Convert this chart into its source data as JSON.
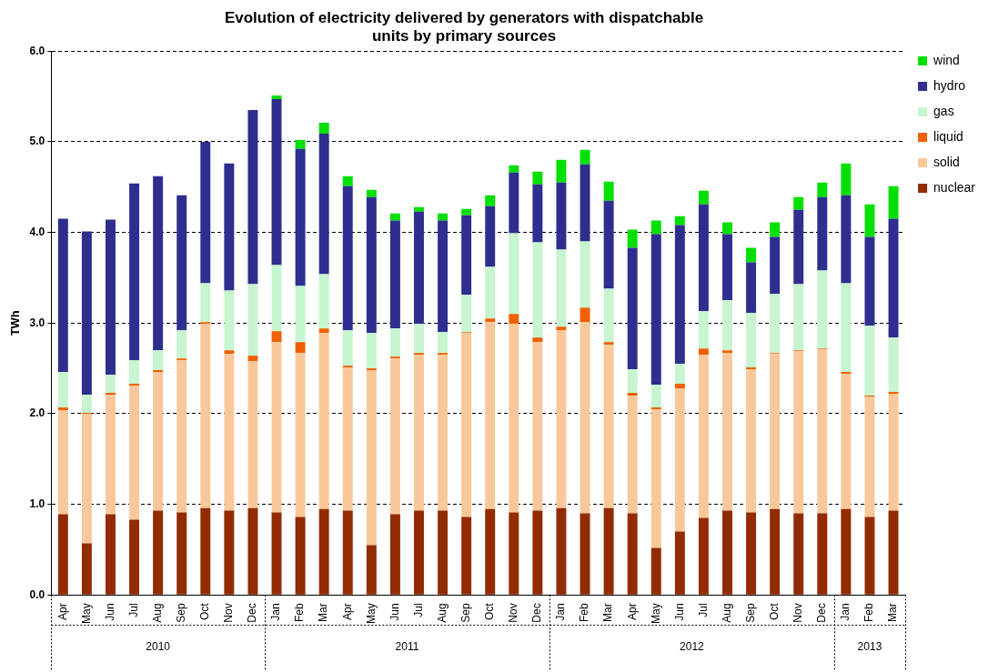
{
  "chart_data": {
    "type": "bar",
    "stacked": true,
    "title": "Evolution of electricity delivered by generators with dispatchable units by primary sources",
    "ylabel": "TWh",
    "categories": [
      "Apr",
      "May",
      "Jun",
      "Jul",
      "Aug",
      "Sep",
      "Oct",
      "Nov",
      "Dec",
      "Jan",
      "Feb",
      "Mar",
      "Apr",
      "May",
      "Jun",
      "Jul",
      "Aug",
      "Sep",
      "Oct",
      "Nov",
      "Dec",
      "Jan",
      "Feb",
      "Mar",
      "Apr",
      "May",
      "Jun",
      "Jul",
      "Aug",
      "Sep",
      "Oct",
      "Nov",
      "Dec",
      "Jan",
      "Feb",
      "Mar"
    ],
    "series": [
      {
        "name": "nuclear",
        "color": "#922b00",
        "values": [
          0.89,
          0.57,
          0.89,
          0.83,
          0.93,
          0.91,
          0.96,
          0.93,
          0.96,
          0.91,
          0.86,
          0.95,
          0.93,
          0.55,
          0.89,
          0.93,
          0.93,
          0.86,
          0.95,
          0.91,
          0.93,
          0.96,
          0.9,
          0.96,
          0.9,
          0.52,
          0.7,
          0.85,
          0.93,
          0.91,
          0.95,
          0.9,
          0.9,
          0.95,
          0.86,
          0.93
        ]
      },
      {
        "name": "solid",
        "color": "#f9c89a",
        "values": [
          1.15,
          1.43,
          1.32,
          1.48,
          1.53,
          1.68,
          2.03,
          1.73,
          1.62,
          1.88,
          1.81,
          1.94,
          1.58,
          1.93,
          1.72,
          1.72,
          1.72,
          2.03,
          2.06,
          2.08,
          1.86,
          1.96,
          2.11,
          1.8,
          1.3,
          1.53,
          1.58,
          1.8,
          1.74,
          1.58,
          1.71,
          1.79,
          1.81,
          1.49,
          1.33,
          1.29
        ]
      },
      {
        "name": "liquid",
        "color": "#f06000",
        "values": [
          0.03,
          0.01,
          0.02,
          0.02,
          0.02,
          0.02,
          0.02,
          0.04,
          0.06,
          0.12,
          0.12,
          0.05,
          0.02,
          0.02,
          0.02,
          0.02,
          0.02,
          0.01,
          0.04,
          0.11,
          0.05,
          0.04,
          0.16,
          0.03,
          0.03,
          0.02,
          0.05,
          0.07,
          0.03,
          0.02,
          0.01,
          0.01,
          0.01,
          0.02,
          0.01,
          0.02
        ]
      },
      {
        "name": "gas",
        "color": "#c6f5cf",
        "values": [
          0.39,
          0.2,
          0.2,
          0.26,
          0.22,
          0.31,
          0.43,
          0.66,
          0.79,
          0.73,
          0.62,
          0.6,
          0.39,
          0.39,
          0.31,
          0.32,
          0.23,
          0.41,
          0.57,
          0.89,
          1.05,
          0.85,
          0.73,
          0.59,
          0.26,
          0.25,
          0.22,
          0.41,
          0.55,
          0.6,
          0.65,
          0.73,
          0.86,
          0.98,
          0.77,
          0.6
        ]
      },
      {
        "name": "hydro",
        "color": "#2e2e8f",
        "values": [
          1.69,
          1.8,
          1.71,
          1.95,
          1.92,
          1.49,
          1.56,
          1.4,
          1.92,
          1.83,
          1.51,
          1.55,
          1.59,
          1.5,
          1.19,
          1.24,
          1.23,
          0.88,
          0.67,
          0.67,
          0.64,
          0.74,
          0.85,
          0.97,
          1.34,
          1.66,
          1.53,
          1.18,
          0.73,
          0.56,
          0.63,
          0.82,
          0.81,
          0.97,
          0.98,
          1.31
        ]
      },
      {
        "name": "wind",
        "color": "#00e000",
        "values": [
          0,
          0,
          0,
          0,
          0,
          0,
          0,
          0,
          0,
          0.04,
          0.1,
          0.12,
          0.11,
          0.08,
          0.08,
          0.05,
          0.08,
          0.07,
          0.12,
          0.08,
          0.14,
          0.25,
          0.16,
          0.21,
          0.2,
          0.15,
          0.1,
          0.15,
          0.13,
          0.16,
          0.16,
          0.14,
          0.16,
          0.35,
          0.36,
          0.36
        ]
      }
    ],
    "ylim": [
      0,
      6
    ],
    "yticks": [
      {
        "value": 0,
        "label": "0.0"
      },
      {
        "value": 1,
        "label": "1.0"
      },
      {
        "value": 2,
        "label": "2.0"
      },
      {
        "value": 3,
        "label": "3.0"
      },
      {
        "value": 4,
        "label": "4.0"
      },
      {
        "value": 5,
        "label": "5.0"
      },
      {
        "value": 6,
        "label": "6.0"
      }
    ],
    "grid": "y",
    "legend": "right",
    "annotations": [
      "2010",
      "2011",
      "2012",
      "2013"
    ]
  }
}
